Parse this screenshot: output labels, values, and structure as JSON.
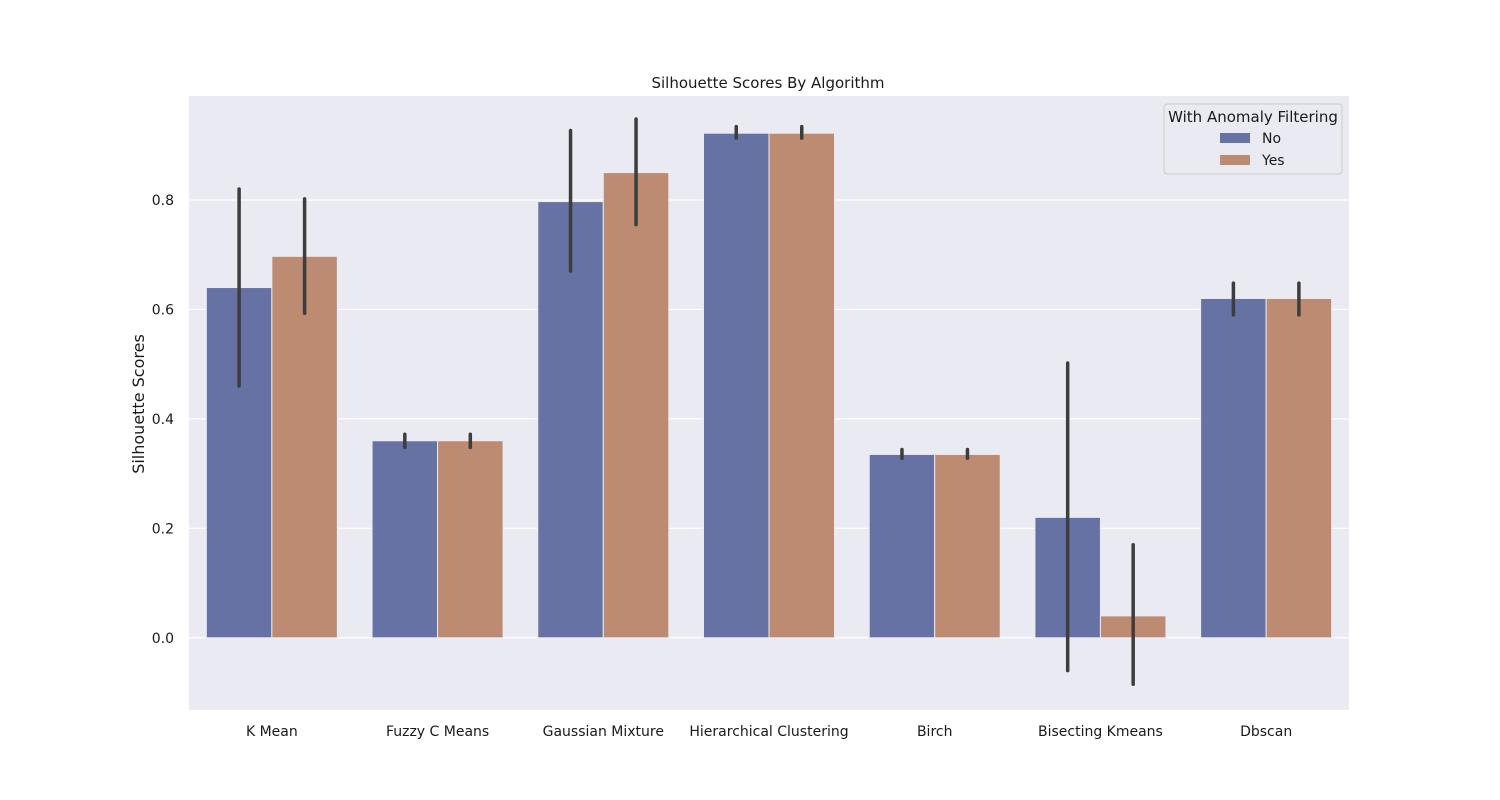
{
  "chart_data": {
    "type": "bar",
    "title": "Silhouette Scores By Algorithm",
    "xlabel": "",
    "ylabel": "Silhouette Scores",
    "categories": [
      "K Mean",
      "Fuzzy C Means",
      "Gaussian Mixture",
      "Hierarchical Clustering",
      "Birch",
      "Bisecting Kmeans",
      "Dbscan"
    ],
    "legend": {
      "title": "With Anomaly Filtering",
      "placement": "top-right"
    },
    "series": [
      {
        "name": "No",
        "color": "#6672a4",
        "values": [
          0.64,
          0.36,
          0.797,
          0.922,
          0.335,
          0.22,
          0.62
        ],
        "error_low": [
          0.46,
          0.348,
          0.67,
          0.913,
          0.328,
          -0.06,
          0.59
        ],
        "error_high": [
          0.82,
          0.372,
          0.927,
          0.934,
          0.344,
          0.502,
          0.648
        ]
      },
      {
        "name": "Yes",
        "color": "#bd8a72",
        "values": [
          0.697,
          0.36,
          0.85,
          0.922,
          0.335,
          0.04,
          0.62
        ],
        "error_low": [
          0.593,
          0.348,
          0.755,
          0.913,
          0.328,
          -0.085,
          0.59
        ],
        "error_high": [
          0.802,
          0.372,
          0.948,
          0.934,
          0.344,
          0.17,
          0.648
        ]
      }
    ],
    "ylim": [
      -0.132,
      0.99
    ],
    "yticks": [
      0.0,
      0.2,
      0.4,
      0.6,
      0.8
    ],
    "ytick_labels": [
      "0.0",
      "0.2",
      "0.4",
      "0.6",
      "0.8"
    ],
    "grid": true,
    "background": "#eaeaf2",
    "error_color": "#3d3d3d"
  }
}
